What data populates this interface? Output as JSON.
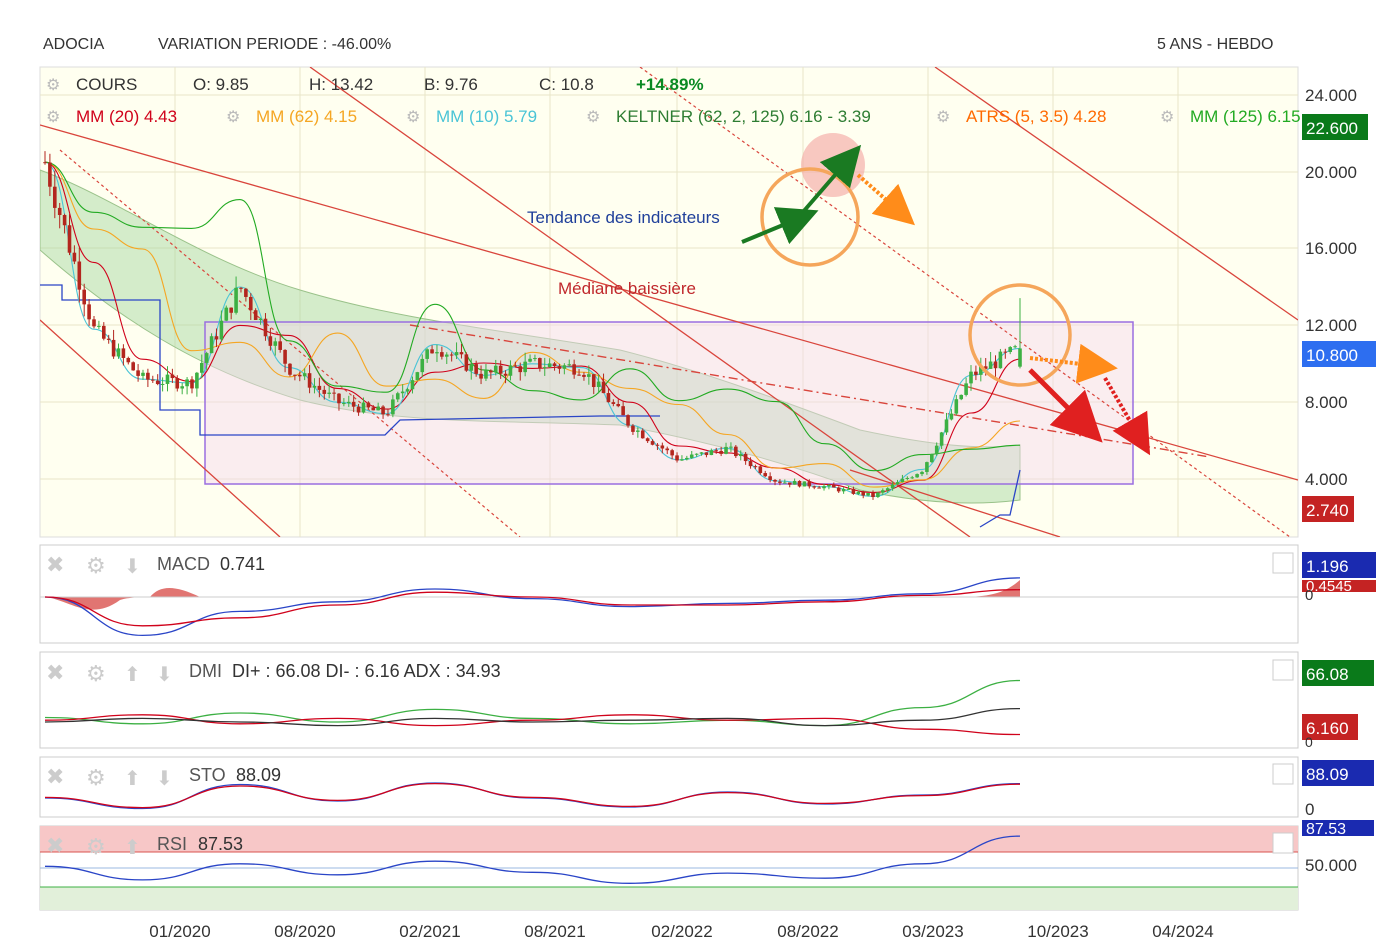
{
  "header": {
    "symbol": "ADOCIA",
    "variation": "VARIATION PERIODE : -46.00%",
    "period": "5 ANS - HEBDO"
  },
  "legend": {
    "cours": "COURS",
    "o": "O: 9.85",
    "h": "H: 13.42",
    "b": "B: 9.76",
    "c": "C: 10.8",
    "change": "+14.89%",
    "mm20": "MM (20)  4.43",
    "mm62": "MM (62)  4.15",
    "mm10": "MM (10)  5.79",
    "keltner": "KELTNER (62, 2, 125)  6.16 - 3.39",
    "atrs": "ATRS (5, 3.5)  4.28",
    "mm125": "MM (125)  6.15"
  },
  "annotations": {
    "trend": "Tendance des indicateurs",
    "median": "Médiane baissière"
  },
  "price_axis": {
    "ticks": [
      "24.000",
      "20.000",
      "16.000",
      "12.000",
      "8.000",
      "4.000"
    ],
    "badge_high": "22.600",
    "badge_last": "10.800",
    "badge_low": "2.740"
  },
  "indicators": {
    "macd": {
      "name": "MACD",
      "value": "0.741",
      "badge1": "1.196",
      "badge2": "0.4545",
      "zero": "0"
    },
    "dmi": {
      "name": "DMI",
      "value": "DI+ : 66.08 DI- : 6.16 ADX : 34.93",
      "badge1": "66.08",
      "badge2": "6.160",
      "zero": "0"
    },
    "sto": {
      "name": "STO",
      "value": "88.09",
      "badge1": "88.09",
      "zero": "0"
    },
    "rsi": {
      "name": "RSI",
      "value": "87.53",
      "badge1": "87.53",
      "level": "50.000"
    }
  },
  "x_axis": [
    "01/2020",
    "08/2020",
    "02/2021",
    "08/2021",
    "02/2022",
    "08/2022",
    "03/2023",
    "10/2023",
    "04/2024"
  ],
  "colors": {
    "mm20": "#d0021b",
    "mm62": "#f5a623",
    "mm10": "#4ac4d6",
    "keltner": "#2e7d32",
    "atrs": "#ff6a00",
    "mm125": "#22aa22",
    "candle_up": "#3cb043",
    "candle_down": "#b3261e"
  },
  "chart_data": [
    {
      "type": "candlestick",
      "title": "ADOCIA",
      "x": [
        "2019-01",
        "2019-04",
        "2019-07",
        "2019-10",
        "2020-01",
        "2020-04",
        "2020-07",
        "2020-10",
        "2021-01",
        "2021-04",
        "2021-07",
        "2021-10",
        "2022-01",
        "2022-04",
        "2022-07",
        "2022-10",
        "2023-01",
        "2023-04",
        "2023-07",
        "2023-08",
        "2023-09"
      ],
      "close": [
        20.5,
        11.8,
        9.2,
        9.0,
        14.0,
        9.8,
        8.0,
        7.4,
        11.0,
        9.4,
        10.0,
        9.8,
        6.8,
        5.0,
        5.6,
        3.9,
        3.6,
        3.1,
        4.5,
        9.4,
        10.8
      ],
      "ylim": [
        2.74,
        24.0
      ],
      "last": {
        "open": 9.85,
        "high": 13.42,
        "low": 9.76,
        "close": 10.8,
        "change_pct": 14.89
      }
    },
    {
      "type": "line",
      "title": "MACD",
      "x": [
        "2019-01",
        "2019-07",
        "2020-01",
        "2020-07",
        "2021-01",
        "2021-07",
        "2022-01",
        "2022-07",
        "2023-01",
        "2023-07",
        "2023-09"
      ],
      "series": [
        {
          "name": "MACD",
          "values": [
            0.0,
            -2.4,
            -0.9,
            -0.3,
            0.5,
            -0.1,
            -0.6,
            -0.4,
            -0.2,
            0.2,
            1.196
          ]
        },
        {
          "name": "Signal",
          "values": [
            0.0,
            -1.8,
            -1.3,
            -0.5,
            0.3,
            0.0,
            -0.5,
            -0.5,
            -0.3,
            0.1,
            0.4545
          ]
        }
      ],
      "last": 0.741
    },
    {
      "type": "line",
      "title": "DMI",
      "x": [
        "2019-01",
        "2019-07",
        "2020-01",
        "2020-07",
        "2021-01",
        "2021-07",
        "2022-01",
        "2022-07",
        "2023-01",
        "2023-07",
        "2023-09"
      ],
      "series": [
        {
          "name": "DI+",
          "values": [
            25,
            18,
            30,
            20,
            34,
            24,
            18,
            22,
            16,
            36,
            66.08
          ]
        },
        {
          "name": "DI-",
          "values": [
            22,
            28,
            18,
            24,
            16,
            22,
            28,
            22,
            24,
            12,
            6.16
          ]
        },
        {
          "name": "ADX",
          "values": [
            20,
            24,
            20,
            16,
            24,
            20,
            22,
            24,
            16,
            22,
            34.93
          ]
        }
      ]
    },
    {
      "type": "line",
      "title": "STO",
      "x": [
        "2019-01",
        "2019-07",
        "2020-01",
        "2020-07",
        "2021-01",
        "2021-07",
        "2022-01",
        "2022-07",
        "2023-01",
        "2023-07",
        "2023-09"
      ],
      "series": [
        {
          "name": "%K",
          "values": [
            40,
            5,
            85,
            30,
            90,
            40,
            10,
            60,
            20,
            50,
            88.09
          ]
        },
        {
          "name": "%D",
          "values": [
            42,
            8,
            80,
            32,
            88,
            42,
            12,
            58,
            22,
            48,
            86
          ]
        }
      ],
      "ylim": [
        0,
        100
      ]
    },
    {
      "type": "line",
      "title": "RSI",
      "x": [
        "2019-01",
        "2019-07",
        "2020-01",
        "2020-07",
        "2021-01",
        "2021-07",
        "2022-01",
        "2022-07",
        "2023-01",
        "2023-07",
        "2023-09"
      ],
      "series": [
        {
          "name": "RSI",
          "values": [
            52,
            36,
            55,
            42,
            58,
            45,
            32,
            44,
            38,
            55,
            87.53
          ]
        }
      ],
      "ylim": [
        20,
        90
      ]
    }
  ]
}
